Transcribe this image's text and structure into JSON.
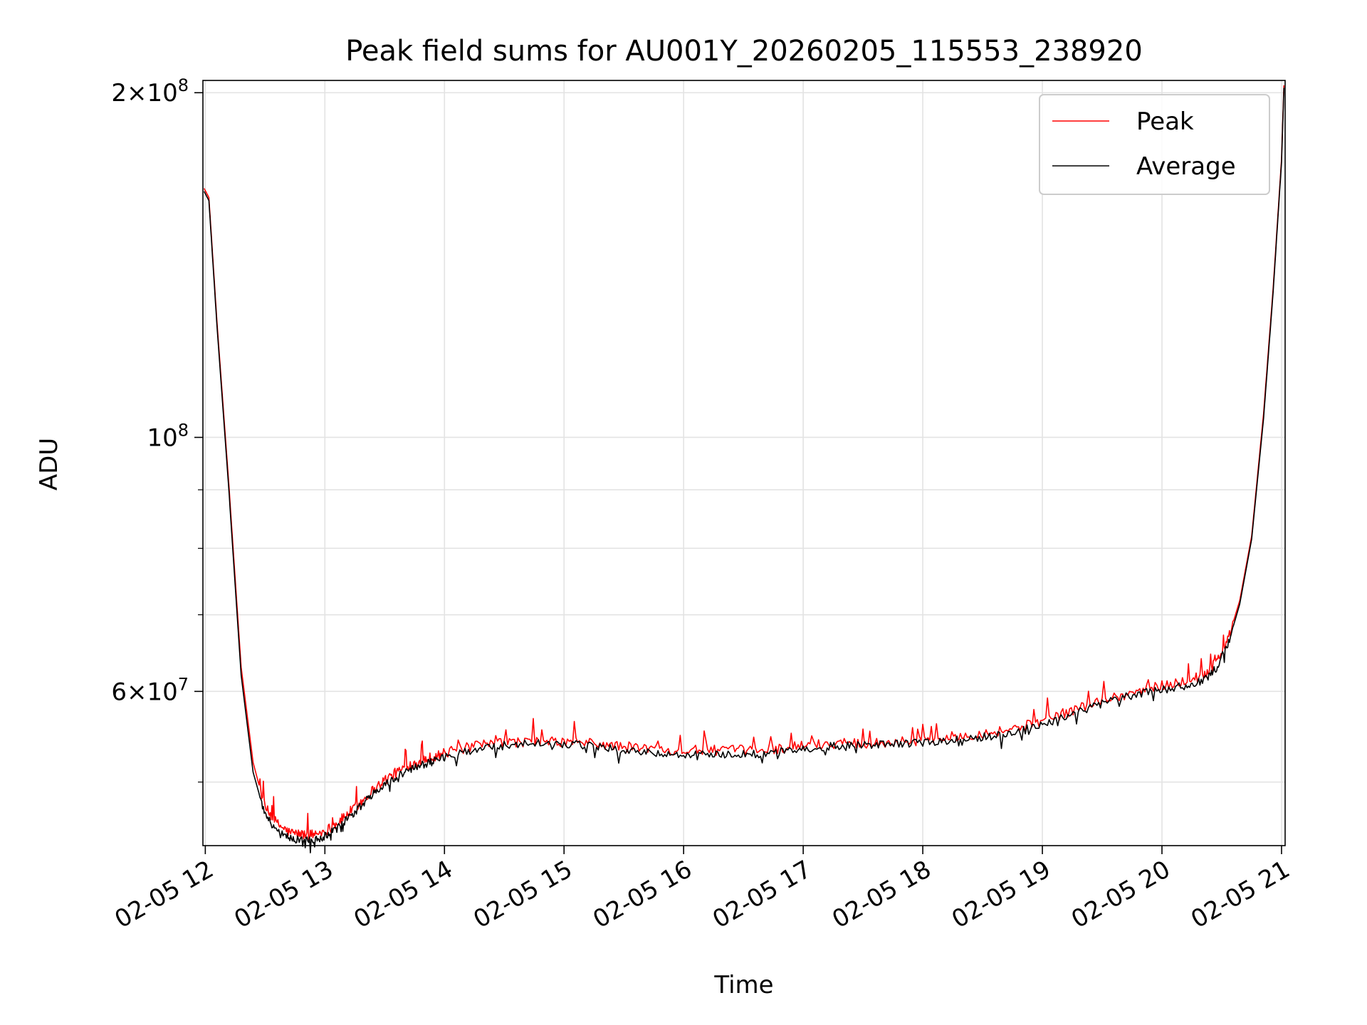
{
  "chart_data": {
    "type": "line",
    "title": "Peak field sums for AU001Y_20260205_115553_238920",
    "xlabel": "Time",
    "ylabel": "ADU",
    "x_unit": "hour of 2026-02-05",
    "xlim": [
      11.98,
      21.03
    ],
    "ylim": [
      44000000,
      205000000
    ],
    "yscale": "log",
    "grid": true,
    "legend_position": "top-right",
    "x_ticks": [
      {
        "value": 12,
        "label": "02-05 12"
      },
      {
        "value": 13,
        "label": "02-05 13"
      },
      {
        "value": 14,
        "label": "02-05 14"
      },
      {
        "value": 15,
        "label": "02-05 15"
      },
      {
        "value": 16,
        "label": "02-05 16"
      },
      {
        "value": 17,
        "label": "02-05 17"
      },
      {
        "value": 18,
        "label": "02-05 18"
      },
      {
        "value": 19,
        "label": "02-05 19"
      },
      {
        "value": 20,
        "label": "02-05 20"
      },
      {
        "value": 21,
        "label": "02-05 21"
      }
    ],
    "y_major_ticks": [
      {
        "value": 60000000,
        "base": "6",
        "exp": "7",
        "times": true
      },
      {
        "value": 100000000,
        "base": "10",
        "exp": "8",
        "times": false
      },
      {
        "value": 200000000,
        "base": "2",
        "exp": "8",
        "times": true
      }
    ],
    "y_minor_ticks": [
      50000000,
      70000000,
      80000000,
      90000000
    ],
    "series": [
      {
        "name": "Peak",
        "color": "#ff0000",
        "x": [
          11.99,
          12.03,
          12.1,
          12.2,
          12.3,
          12.4,
          12.5,
          12.6,
          12.7,
          12.8,
          12.9,
          13.0,
          13.1,
          13.2,
          13.3,
          13.4,
          13.5,
          13.6,
          13.7,
          13.8,
          13.9,
          14.0,
          14.2,
          14.4,
          14.6,
          14.8,
          15.0,
          15.2,
          15.4,
          15.6,
          15.8,
          16.0,
          16.2,
          16.4,
          16.6,
          16.8,
          17.0,
          17.2,
          17.4,
          17.6,
          17.8,
          18.0,
          18.2,
          18.4,
          18.6,
          18.8,
          19.0,
          19.2,
          19.4,
          19.6,
          19.8,
          20.0,
          20.2,
          20.35,
          20.45,
          20.55,
          20.65,
          20.75,
          20.85,
          20.93,
          21.0,
          21.02
        ],
        "y": [
          165000000,
          162000000,
          125000000,
          90000000,
          63000000,
          52000000,
          47500000,
          46000000,
          45200000,
          45000000,
          45000000,
          45300000,
          46000000,
          47000000,
          48000000,
          49200000,
          50200000,
          51000000,
          51700000,
          52200000,
          52600000,
          53000000,
          53600000,
          54000000,
          54200000,
          54200000,
          54200000,
          54100000,
          53800000,
          53600000,
          53400000,
          53300000,
          53300000,
          53300000,
          53300000,
          53500000,
          53800000,
          54000000,
          54100000,
          54100000,
          54200000,
          54400000,
          54700000,
          55000000,
          55300000,
          55800000,
          56500000,
          57500000,
          58500000,
          59300000,
          60000000,
          60700000,
          61300000,
          62000000,
          63500000,
          66500000,
          72000000,
          82000000,
          105000000,
          135000000,
          175000000,
          203000000
        ]
      },
      {
        "name": "Average",
        "color": "#000000",
        "x": [
          11.99,
          12.03,
          12.1,
          12.2,
          12.3,
          12.4,
          12.5,
          12.6,
          12.7,
          12.8,
          12.9,
          13.0,
          13.1,
          13.2,
          13.3,
          13.4,
          13.5,
          13.6,
          13.7,
          13.8,
          13.9,
          14.0,
          14.2,
          14.4,
          14.6,
          14.8,
          15.0,
          15.2,
          15.4,
          15.6,
          15.8,
          16.0,
          16.2,
          16.4,
          16.6,
          16.8,
          17.0,
          17.2,
          17.4,
          17.6,
          17.8,
          18.0,
          18.2,
          18.4,
          18.6,
          18.8,
          19.0,
          19.2,
          19.4,
          19.6,
          19.8,
          20.0,
          20.2,
          20.35,
          20.45,
          20.55,
          20.65,
          20.75,
          20.85,
          20.93,
          21.0,
          21.02
        ],
        "y": [
          164000000,
          161000000,
          124000000,
          89000000,
          62000000,
          51000000,
          46800000,
          45200000,
          44700000,
          44500000,
          44500000,
          44800000,
          45500000,
          46500000,
          47600000,
          48800000,
          49800000,
          50500000,
          51200000,
          51700000,
          52100000,
          52500000,
          53200000,
          53700000,
          54000000,
          54100000,
          54000000,
          53800000,
          53500000,
          53200000,
          53000000,
          52900000,
          52800000,
          52800000,
          52900000,
          53100000,
          53400000,
          53700000,
          53900000,
          53900000,
          54000000,
          54100000,
          54300000,
          54600000,
          54900000,
          55400000,
          56100000,
          57000000,
          58100000,
          59000000,
          59700000,
          60300000,
          60700000,
          61300000,
          62800000,
          65800000,
          71500000,
          81500000,
          104000000,
          134000000,
          174000000,
          202000000
        ]
      }
    ]
  }
}
